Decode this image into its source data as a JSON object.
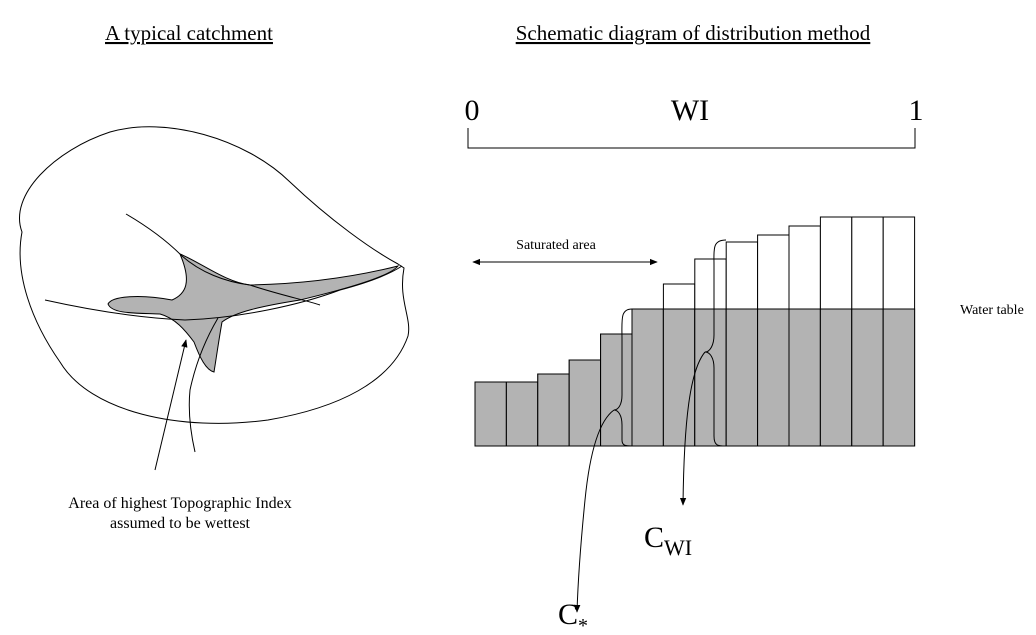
{
  "left_panel": {
    "title": "A typical catchment",
    "caption": [
      "Area of highest Topographic Index",
      "assumed to be wettest"
    ]
  },
  "right_panel": {
    "title": "Schematic diagram of distribution method",
    "scale": {
      "start": "0",
      "label": "WI",
      "end": "1"
    },
    "saturated_area": "Saturated area",
    "water_table": "Water table",
    "c_star": {
      "symbol": "C",
      "subscript": "*"
    },
    "c_wi": {
      "symbol": "C",
      "subscript": "WI"
    }
  }
}
